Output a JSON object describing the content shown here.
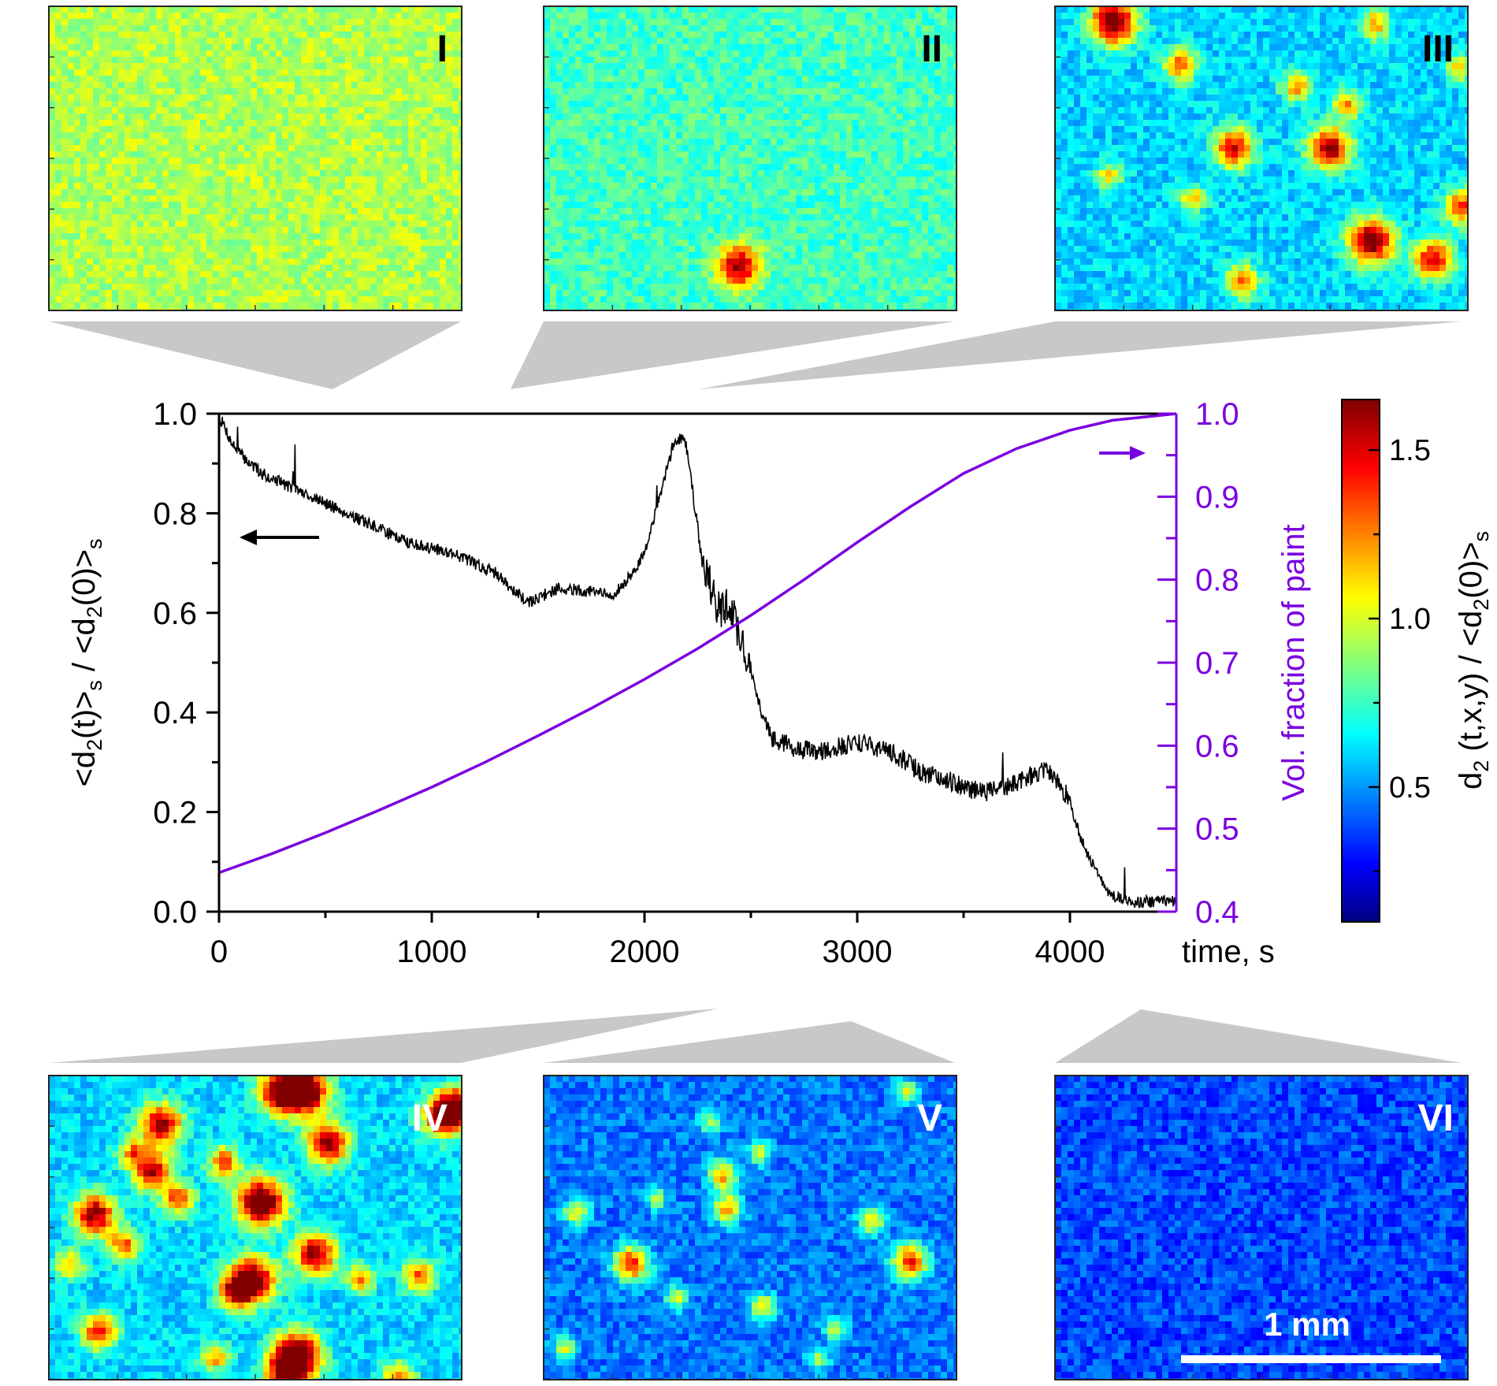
{
  "panels": {
    "top": [
      {
        "label": "I",
        "level": 0.95,
        "spots": []
      },
      {
        "label": "II",
        "level": 0.78,
        "spots": [
          [
            0.47,
            0.84,
            1.6
          ]
        ]
      },
      {
        "label": "III",
        "level": 0.62,
        "spots": [
          [
            0.14,
            0.05,
            1.7
          ],
          [
            0.66,
            0.46,
            1.6
          ],
          [
            0.76,
            0.76,
            1.7
          ],
          [
            0.43,
            0.46,
            1.5
          ],
          [
            0.98,
            0.65,
            1.4
          ],
          [
            0.91,
            0.82,
            1.5
          ],
          [
            0.3,
            0.19,
            1.3
          ],
          [
            0.45,
            0.89,
            1.3
          ],
          [
            0.58,
            0.26,
            1.2
          ],
          [
            0.77,
            0.06,
            1.2
          ],
          [
            0.13,
            0.55,
            1.1
          ],
          [
            0.7,
            0.32,
            1.2
          ],
          [
            0.33,
            0.62,
            1.1
          ],
          [
            0.97,
            0.2,
            1.1
          ]
        ]
      }
    ],
    "bottom": [
      {
        "label": "IV",
        "level": 0.62,
        "spots": [
          [
            0.56,
            0.05,
            1.7
          ],
          [
            0.62,
            0.05,
            1.7
          ],
          [
            0.51,
            0.41,
            1.8
          ],
          [
            0.49,
            0.66,
            1.7
          ],
          [
            0.64,
            0.58,
            1.6
          ],
          [
            0.27,
            0.16,
            1.6
          ],
          [
            0.25,
            0.31,
            1.5
          ],
          [
            0.67,
            0.22,
            1.6
          ],
          [
            0.11,
            0.45,
            1.6
          ],
          [
            0.57,
            0.96,
            1.6
          ],
          [
            0.6,
            0.9,
            1.7
          ],
          [
            0.95,
            0.13,
            1.6
          ],
          [
            0.99,
            0.1,
            1.5
          ],
          [
            0.45,
            0.7,
            1.4
          ],
          [
            0.31,
            0.4,
            1.3
          ],
          [
            0.12,
            0.83,
            1.4
          ],
          [
            0.84,
            0.98,
            1.3
          ],
          [
            0.18,
            0.55,
            1.3
          ],
          [
            0.75,
            0.66,
            1.2
          ],
          [
            0.89,
            0.65,
            1.3
          ],
          [
            0.42,
            0.28,
            1.3
          ],
          [
            0.2,
            0.25,
            1.2
          ],
          [
            0.05,
            0.61,
            1.2
          ],
          [
            0.4,
            0.91,
            1.2
          ]
        ]
      },
      {
        "label": "V",
        "level": 0.47,
        "spots": [
          [
            0.21,
            0.61,
            1.4
          ],
          [
            0.88,
            0.6,
            1.4
          ],
          [
            0.43,
            0.32,
            1.2
          ],
          [
            0.44,
            0.43,
            1.2
          ],
          [
            0.79,
            0.47,
            1.1
          ],
          [
            0.08,
            0.44,
            1.1
          ],
          [
            0.53,
            0.75,
            1.1
          ],
          [
            0.32,
            0.72,
            1.0
          ],
          [
            0.7,
            0.82,
            1.0
          ],
          [
            0.05,
            0.88,
            1.0
          ],
          [
            0.52,
            0.25,
            1.0
          ],
          [
            0.27,
            0.4,
            0.95
          ],
          [
            0.87,
            0.05,
            1.0
          ],
          [
            0.66,
            0.92,
            0.95
          ],
          [
            0.4,
            0.15,
            0.95
          ]
        ]
      },
      {
        "label": "VI",
        "level": 0.4,
        "spots": []
      }
    ],
    "scalebar_label": "1 mm"
  },
  "chart_data": {
    "type": "line",
    "xlabel": "time, s",
    "ylabel_left": "<d2(t)>s / <d2(0)>s",
    "ylabel_right": "Vol. fraction of paint",
    "xlim": [
      0,
      4500
    ],
    "ylim_left": [
      0.0,
      1.0
    ],
    "ylim_right": [
      0.4,
      1.0
    ],
    "x_ticks": [
      "0",
      "1000",
      "2000",
      "3000",
      "4000"
    ],
    "y_ticks_left": [
      "0.0",
      "0.2",
      "0.4",
      "0.6",
      "0.8",
      "1.0"
    ],
    "y_ticks_right": [
      "0.4",
      "0.5",
      "0.6",
      "0.7",
      "0.8",
      "0.9",
      "1.0"
    ],
    "series": [
      {
        "axis": "left",
        "color": "#000000",
        "x": [
          0,
          20,
          60,
          120,
          200,
          300,
          400,
          500,
          600,
          700,
          800,
          900,
          1000,
          1100,
          1200,
          1300,
          1400,
          1450,
          1500,
          1550,
          1600,
          1700,
          1800,
          1850,
          1900,
          1950,
          2000,
          2050,
          2100,
          2130,
          2160,
          2190,
          2210,
          2240,
          2280,
          2320,
          2360,
          2400,
          2450,
          2500,
          2550,
          2600,
          2700,
          2800,
          2900,
          3000,
          3100,
          3200,
          3300,
          3400,
          3500,
          3600,
          3700,
          3800,
          3850,
          3900,
          3950,
          4000,
          4050,
          4100,
          4150,
          4200,
          4300,
          4400,
          4500
        ],
        "y": [
          0.99,
          0.98,
          0.94,
          0.91,
          0.88,
          0.86,
          0.84,
          0.82,
          0.8,
          0.78,
          0.76,
          0.74,
          0.73,
          0.72,
          0.7,
          0.68,
          0.64,
          0.62,
          0.63,
          0.64,
          0.65,
          0.645,
          0.64,
          0.63,
          0.66,
          0.68,
          0.72,
          0.8,
          0.88,
          0.93,
          0.95,
          0.95,
          0.9,
          0.8,
          0.7,
          0.64,
          0.6,
          0.62,
          0.55,
          0.48,
          0.4,
          0.35,
          0.33,
          0.32,
          0.33,
          0.34,
          0.33,
          0.31,
          0.28,
          0.27,
          0.25,
          0.24,
          0.25,
          0.27,
          0.28,
          0.28,
          0.26,
          0.22,
          0.15,
          0.1,
          0.06,
          0.03,
          0.02,
          0.02,
          0.02
        ]
      },
      {
        "axis": "right",
        "color": "#7b00e0",
        "x": [
          0,
          250,
          500,
          750,
          1000,
          1250,
          1500,
          1750,
          2000,
          2250,
          2500,
          2750,
          3000,
          3250,
          3500,
          3750,
          4000,
          4200,
          4350,
          4500
        ],
        "y": [
          0.447,
          0.47,
          0.495,
          0.522,
          0.55,
          0.58,
          0.612,
          0.645,
          0.68,
          0.717,
          0.757,
          0.8,
          0.845,
          0.888,
          0.928,
          0.958,
          0.98,
          0.992,
          0.996,
          1.0
        ]
      }
    ],
    "colorbar": {
      "label": "d2 (t,x,y) / <d2(0)>s",
      "range": [
        0.1,
        1.65
      ],
      "ticks": [
        "0.5",
        "1.0",
        "1.5"
      ],
      "colormap": "jet"
    }
  }
}
